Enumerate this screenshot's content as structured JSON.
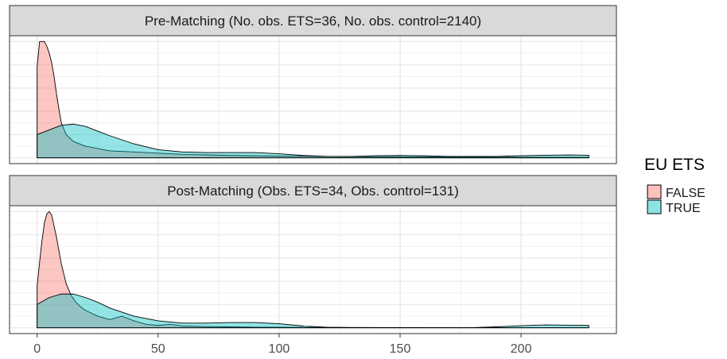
{
  "chart_data": {
    "type": "area",
    "subtype": "density",
    "panels": [
      {
        "title": "Pre-Matching (No. obs. ETS=36, No. obs. control=2140)",
        "series": [
          {
            "name": "FALSE",
            "x": [
              0,
              1,
              2,
              3,
              4,
              5,
              6,
              7,
              8,
              9,
              10,
              12,
              15,
              20,
              25,
              30,
              40,
              50,
              60,
              80,
              100,
              130,
              160,
              200,
              228
            ],
            "y": [
              0.78,
              1.0,
              1.0,
              1.0,
              0.96,
              0.9,
              0.82,
              0.7,
              0.55,
              0.42,
              0.3,
              0.2,
              0.14,
              0.1,
              0.08,
              0.06,
              0.05,
              0.04,
              0.03,
              0.02,
              0.015,
              0.01,
              0.008,
              0.005,
              0.004
            ]
          },
          {
            "name": "TRUE",
            "x": [
              0,
              5,
              10,
              15,
              20,
              25,
              30,
              40,
              50,
              60,
              70,
              80,
              90,
              100,
              110,
              120,
              130,
              140,
              150,
              160,
              170,
              180,
              190,
              200,
              210,
              220,
              228
            ],
            "y": [
              0.2,
              0.24,
              0.28,
              0.29,
              0.27,
              0.23,
              0.19,
              0.12,
              0.07,
              0.05,
              0.045,
              0.045,
              0.045,
              0.035,
              0.02,
              0.012,
              0.012,
              0.018,
              0.02,
              0.018,
              0.012,
              0.012,
              0.012,
              0.018,
              0.022,
              0.025,
              0.022
            ]
          }
        ]
      },
      {
        "title": "Post-Matching (Obs. ETS=34, Obs. control=131)",
        "series": [
          {
            "name": "FALSE",
            "x": [
              0,
              1,
              2,
              3,
              4,
              5,
              6,
              8,
              10,
              12,
              14,
              16,
              18,
              20,
              25,
              30,
              35,
              40,
              45,
              50,
              55,
              60,
              70,
              80,
              90,
              100,
              120,
              150,
              200,
              228
            ],
            "y": [
              0.36,
              0.56,
              0.75,
              0.9,
              0.98,
              1.0,
              0.97,
              0.78,
              0.55,
              0.38,
              0.28,
              0.22,
              0.18,
              0.15,
              0.1,
              0.07,
              0.1,
              0.06,
              0.03,
              0.02,
              0.03,
              0.015,
              0.01,
              0.008,
              0.005,
              0.004,
              0.003,
              0.002,
              0.001,
              0.001
            ]
          },
          {
            "name": "TRUE",
            "x": [
              0,
              5,
              10,
              15,
              20,
              25,
              30,
              40,
              50,
              60,
              70,
              80,
              90,
              100,
              110,
              120,
              130,
              140,
              150,
              160,
              170,
              180,
              190,
              200,
              210,
              220,
              228
            ],
            "y": [
              0.2,
              0.26,
              0.29,
              0.29,
              0.26,
              0.22,
              0.17,
              0.1,
              0.06,
              0.04,
              0.04,
              0.045,
              0.045,
              0.035,
              0.015,
              0.004,
              0.002,
              0.001,
              0.001,
              0.001,
              0.001,
              0.002,
              0.008,
              0.018,
              0.025,
              0.022,
              0.02
            ]
          }
        ]
      }
    ],
    "x_ticks": [
      0,
      50,
      100,
      150,
      200
    ],
    "xlim": [
      -11.4,
      239.4
    ],
    "ylim": [
      -0.05,
      1.05
    ],
    "xlabel": "",
    "ylabel": "",
    "grid": true,
    "legend": {
      "title": "EU ETS",
      "placement": "right",
      "entries": [
        "FALSE",
        "TRUE"
      ]
    },
    "colors": {
      "FALSE": "#F8766D",
      "TRUE": "#00BFC4",
      "strip_bg": "#D9D9D9",
      "panel_border": "#333333",
      "grid": "#EBEBEB"
    }
  }
}
